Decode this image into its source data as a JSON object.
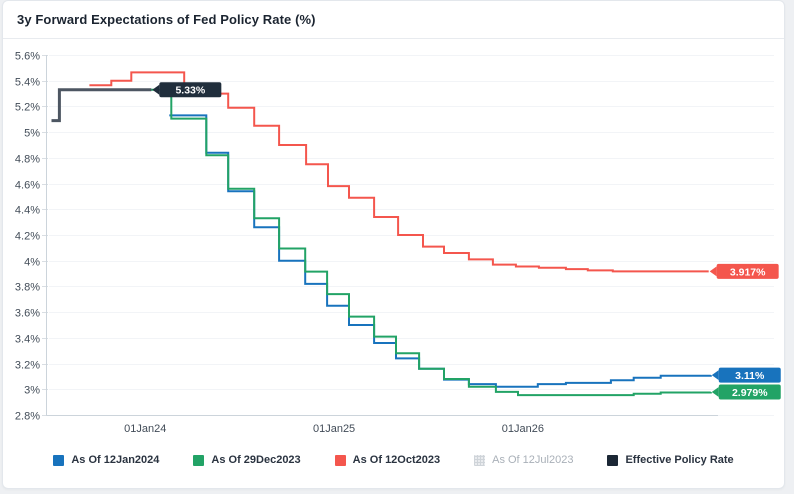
{
  "page": {
    "title": "3y Forward Expectations of Fed Policy Rate (%)"
  },
  "chart_data": {
    "type": "line",
    "subtype": "step-after",
    "title": "3y Forward Expectations of Fed Policy Rate (%)",
    "x_axis": {
      "unit": "years since 01Jan2024",
      "domain": [
        -0.51,
        3.33
      ],
      "ticks": [
        {
          "t": 0,
          "label": "01Jan24"
        },
        {
          "t": 1,
          "label": "01Jan25"
        },
        {
          "t": 2,
          "label": "01Jan26"
        }
      ],
      "grid": false
    },
    "y_axis": {
      "domain": [
        2.8,
        5.6
      ],
      "tick_step": 0.2,
      "tick_labels": [
        "5.6%",
        "5.4%",
        "5.2%",
        "5%",
        "4.8%",
        "4.6%",
        "4.4%",
        "4.2%",
        "4%",
        "3.8%",
        "3.6%",
        "3.4%",
        "3.2%",
        "3%",
        "2.8%"
      ],
      "grid": true
    },
    "series": [
      {
        "name": "As Of 12Oct2023",
        "color": "#f4564d",
        "width": 2,
        "end_label": "3.917%",
        "visible": true,
        "points": [
          [
            -0.296,
            5.365
          ],
          [
            -0.18,
            5.4
          ],
          [
            -0.074,
            5.465
          ],
          [
            0.206,
            5.3
          ],
          [
            0.439,
            5.19
          ],
          [
            0.577,
            5.05
          ],
          [
            0.709,
            4.9
          ],
          [
            0.852,
            4.75
          ],
          [
            0.968,
            4.58
          ],
          [
            1.079,
            4.49
          ],
          [
            1.212,
            4.34
          ],
          [
            1.339,
            4.2
          ],
          [
            1.471,
            4.11
          ],
          [
            1.582,
            4.06
          ],
          [
            1.714,
            4.01
          ],
          [
            1.841,
            3.97
          ],
          [
            1.963,
            3.955
          ],
          [
            2.085,
            3.945
          ],
          [
            2.228,
            3.935
          ],
          [
            2.344,
            3.925
          ],
          [
            2.476,
            3.917
          ],
          [
            2.984,
            3.917
          ]
        ]
      },
      {
        "name": "As Of 12Jan2024",
        "color": "#1873bd",
        "width": 2,
        "end_label": "3.11%",
        "visible": true,
        "points": [
          [
            0.127,
            5.13
          ],
          [
            0.323,
            4.84
          ],
          [
            0.439,
            4.54
          ],
          [
            0.577,
            4.26
          ],
          [
            0.709,
            4.0
          ],
          [
            0.847,
            3.82
          ],
          [
            0.963,
            3.65
          ],
          [
            1.079,
            3.5
          ],
          [
            1.212,
            3.36
          ],
          [
            1.328,
            3.24
          ],
          [
            1.45,
            3.16
          ],
          [
            1.582,
            3.075
          ],
          [
            1.714,
            3.04
          ],
          [
            1.857,
            3.02
          ],
          [
            2.079,
            3.04
          ],
          [
            2.228,
            3.05
          ],
          [
            2.466,
            3.07
          ],
          [
            2.587,
            3.09
          ],
          [
            2.73,
            3.105
          ],
          [
            2.995,
            3.11
          ]
        ]
      },
      {
        "name": "As Of 29Dec2023",
        "color": "#22a366",
        "width": 2,
        "end_label": "2.979%",
        "visible": true,
        "points": [
          [
            -0.069,
            5.33
          ],
          [
            0.138,
            5.105
          ],
          [
            0.323,
            4.82
          ],
          [
            0.439,
            4.56
          ],
          [
            0.577,
            4.33
          ],
          [
            0.709,
            4.095
          ],
          [
            0.847,
            3.915
          ],
          [
            0.963,
            3.74
          ],
          [
            1.079,
            3.565
          ],
          [
            1.212,
            3.41
          ],
          [
            1.328,
            3.28
          ],
          [
            1.45,
            3.16
          ],
          [
            1.582,
            3.08
          ],
          [
            1.714,
            3.02
          ],
          [
            1.857,
            2.98
          ],
          [
            1.974,
            2.955
          ],
          [
            2.587,
            2.965
          ],
          [
            2.73,
            2.975
          ],
          [
            2.995,
            2.979
          ]
        ]
      },
      {
        "name": "As Of 12Jul2023",
        "color": "#c9ced3",
        "width": 2,
        "end_label": null,
        "visible": false,
        "points": []
      },
      {
        "name": "Effective Policy Rate",
        "color": "#4d5662",
        "label_fill": "#202e3c",
        "width": 3,
        "end_label": "5.33%",
        "visible": true,
        "points": [
          [
            -0.497,
            5.09
          ],
          [
            -0.455,
            5.33
          ],
          [
            0.032,
            5.33
          ]
        ]
      }
    ],
    "legend": {
      "position": "bottom",
      "items": [
        {
          "label": "As Of 12Jan2024",
          "color": "#1873bd",
          "active": true
        },
        {
          "label": "As Of 29Dec2023",
          "color": "#22a366",
          "active": true
        },
        {
          "label": "As Of 12Oct2023",
          "color": "#f4564d",
          "active": true
        },
        {
          "label": "As Of 12Jul2023",
          "color": "#c9ced3",
          "active": false
        },
        {
          "label": "Effective Policy Rate",
          "color": "#1b2735",
          "active": true
        }
      ]
    },
    "colors": {
      "grid": "#f2f4f7",
      "axis": "#ccd4db",
      "tick": "#d9dee3",
      "end_label_text": "#ffffff"
    }
  }
}
